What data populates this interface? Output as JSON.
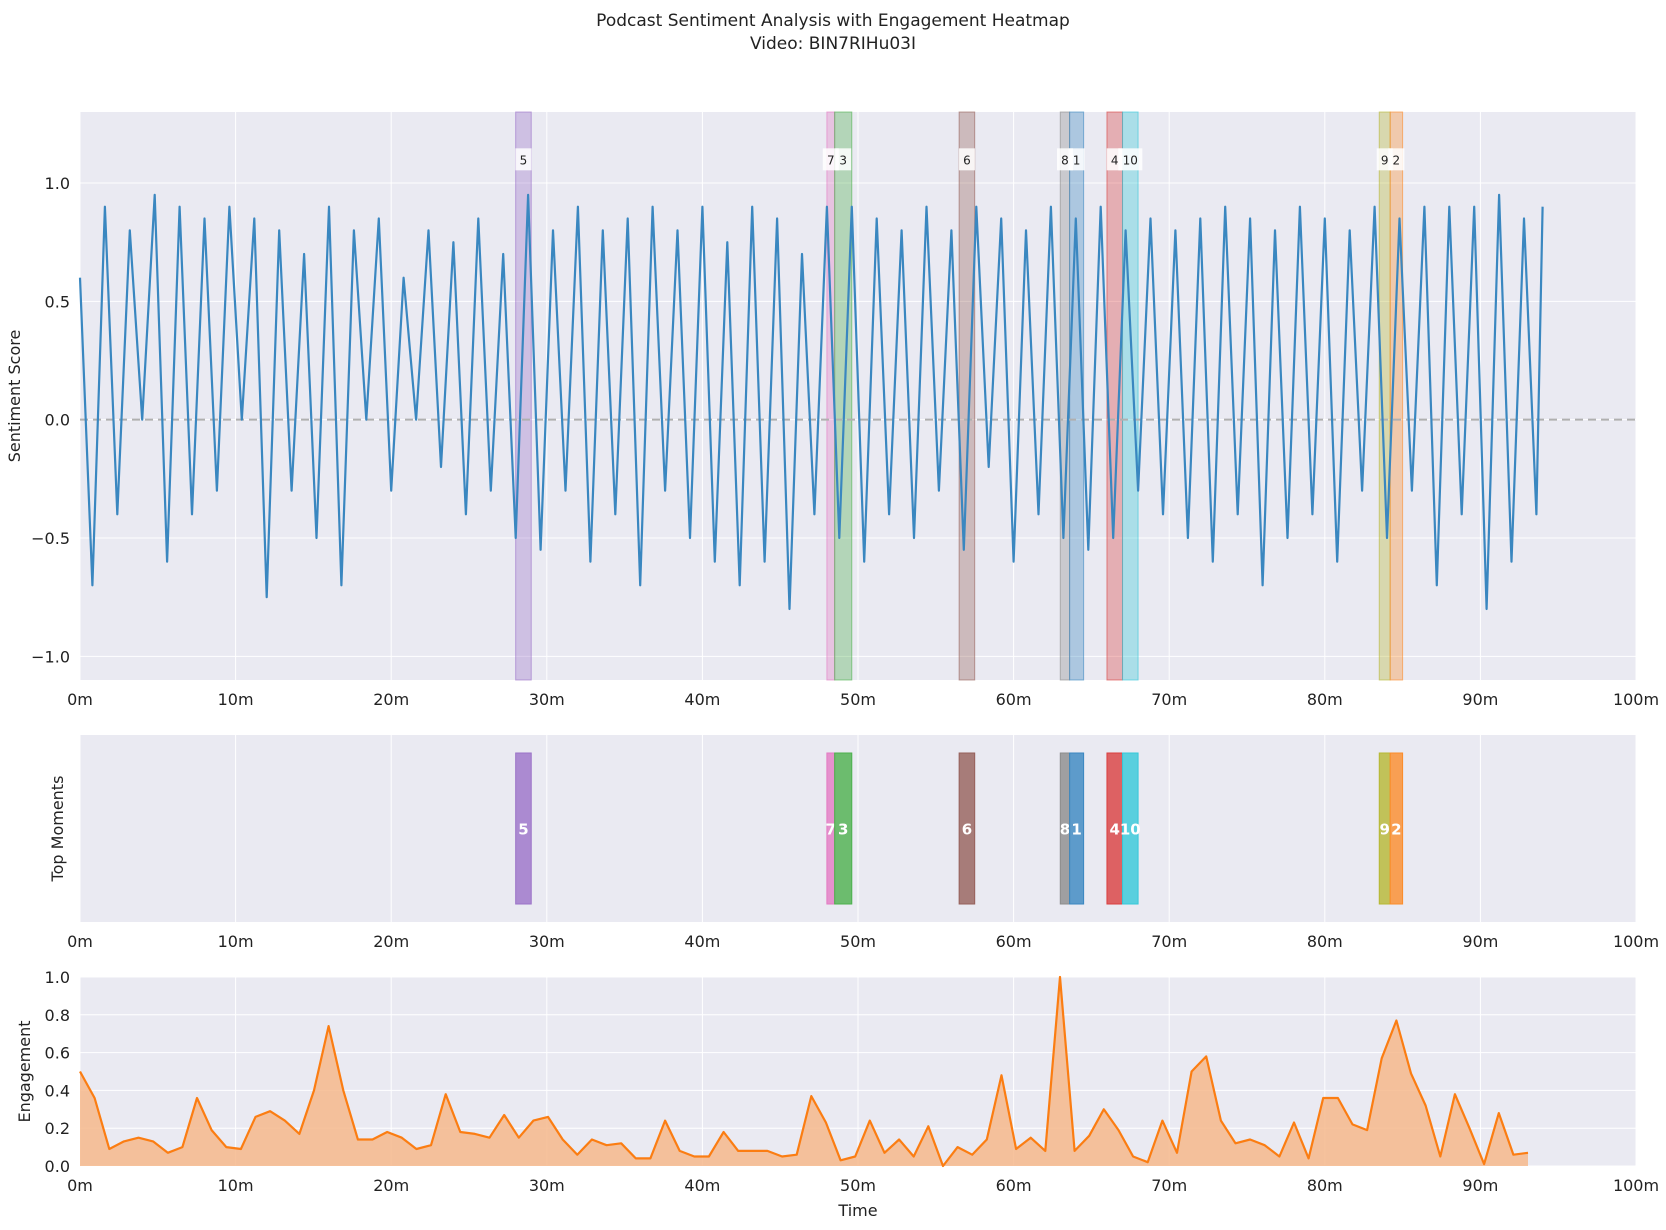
{
  "figure": {
    "title": "Podcast Sentiment Analysis with Engagement Heatmap",
    "subtitle": "Video: BIN7RIHu03I"
  },
  "chart_data": [
    {
      "type": "line",
      "panel": "sentiment",
      "ylabel": "Sentiment Score",
      "xlabel": "",
      "xlim": [
        0,
        100
      ],
      "ylim": [
        -1.1,
        1.3
      ],
      "x_ticks": [
        "0m",
        "10m",
        "20m",
        "30m",
        "40m",
        "50m",
        "60m",
        "70m",
        "80m",
        "90m",
        "100m"
      ],
      "y_ticks": [
        "−1.0",
        "−0.5",
        "0.0",
        "0.5",
        "1.0"
      ],
      "y_tick_values": [
        -1.0,
        -0.5,
        0.0,
        0.5,
        1.0
      ],
      "grid": true,
      "baseline": 0.0,
      "line_color": "#3a87c0",
      "series": [
        {
          "x_minutes": [
            0.0,
            0.8,
            1.6,
            2.4,
            3.2,
            4.0,
            4.8,
            5.6,
            6.4,
            7.2,
            8.0,
            8.8,
            9.6,
            10.4,
            11.2,
            12.0,
            12.8,
            13.6,
            14.4,
            15.2,
            16.0,
            16.8,
            17.6,
            18.4,
            19.2,
            20.0,
            20.8,
            21.6,
            22.4,
            23.2,
            24.0,
            24.8,
            25.6,
            26.4,
            27.2,
            28.0,
            28.8,
            29.6,
            30.4,
            31.2,
            32.0,
            32.8,
            33.6,
            34.4,
            35.2,
            36.0,
            36.8,
            37.6,
            38.4,
            39.2,
            40.0,
            40.8,
            41.6,
            42.4,
            43.2,
            44.0,
            44.8,
            45.6,
            46.4,
            47.2,
            48.0,
            48.8,
            49.6,
            50.4,
            51.2,
            52.0,
            52.8,
            53.6,
            54.4,
            55.2,
            56.0,
            56.8,
            57.6,
            58.4,
            59.2,
            60.0,
            60.8,
            61.6,
            62.4,
            63.2,
            64.0,
            64.8,
            65.6,
            66.4,
            67.2,
            68.0,
            68.8,
            69.6,
            70.4,
            71.2,
            72.0,
            72.8,
            73.6,
            74.4,
            75.2,
            76.0,
            76.8,
            77.6,
            78.4,
            79.2,
            80.0,
            80.8,
            81.6,
            82.4,
            83.2,
            84.0,
            84.8,
            85.6,
            86.4,
            87.2,
            88.0,
            88.8,
            89.6,
            90.4,
            91.2,
            92.0,
            92.8,
            93.6,
            94.0
          ],
          "y": [
            0.6,
            -0.7,
            0.9,
            -0.4,
            0.8,
            0.0,
            0.95,
            -0.6,
            0.9,
            -0.4,
            0.85,
            -0.3,
            0.9,
            0.0,
            0.85,
            -0.75,
            0.8,
            -0.3,
            0.7,
            -0.5,
            0.9,
            -0.7,
            0.8,
            0.0,
            0.85,
            -0.3,
            0.6,
            0.0,
            0.8,
            -0.2,
            0.75,
            -0.4,
            0.85,
            -0.3,
            0.7,
            -0.5,
            0.95,
            -0.55,
            0.8,
            -0.3,
            0.9,
            -0.6,
            0.8,
            -0.4,
            0.85,
            -0.7,
            0.9,
            -0.3,
            0.8,
            -0.5,
            0.9,
            -0.6,
            0.75,
            -0.7,
            0.9,
            -0.6,
            0.85,
            -0.8,
            0.7,
            -0.4,
            0.9,
            -0.5,
            0.9,
            -0.6,
            0.85,
            -0.4,
            0.8,
            -0.5,
            0.9,
            -0.3,
            0.8,
            -0.55,
            0.9,
            -0.2,
            0.85,
            -0.6,
            0.8,
            -0.4,
            0.9,
            -0.5,
            0.85,
            -0.55,
            0.9,
            -0.5,
            0.8,
            -0.3,
            0.85,
            -0.4,
            0.8,
            -0.5,
            0.85,
            -0.6,
            0.9,
            -0.4,
            0.85,
            -0.7,
            0.8,
            -0.5,
            0.9,
            -0.4,
            0.85,
            -0.6,
            0.8,
            -0.3,
            0.9,
            -0.5,
            0.85,
            -0.3,
            0.9,
            -0.7,
            0.9,
            -0.4,
            0.9,
            -0.8,
            0.95,
            -0.6,
            0.85,
            -0.4,
            0.9
          ]
        }
      ],
      "highlight_labels": [
        "5",
        "7",
        "3",
        "6",
        "8",
        "1",
        "4",
        "10",
        "9",
        "2"
      ]
    },
    {
      "type": "bar",
      "panel": "top-moments",
      "ylabel": "Top Moments",
      "xlim": [
        0,
        100
      ],
      "x_ticks": [
        "0m",
        "10m",
        "20m",
        "30m",
        "40m",
        "50m",
        "60m",
        "70m",
        "80m",
        "90m",
        "100m"
      ],
      "grid": true,
      "moments": [
        {
          "rank": "5",
          "start": 28.0,
          "end": 29.0,
          "color": "#9b72c8"
        },
        {
          "rank": "7",
          "start": 48.0,
          "end": 48.5,
          "color": "#e37bc3"
        },
        {
          "rank": "3",
          "start": 48.5,
          "end": 49.6,
          "color": "#4cb04c"
        },
        {
          "rank": "6",
          "start": 56.5,
          "end": 57.5,
          "color": "#96605a"
        },
        {
          "rank": "8",
          "start": 63.0,
          "end": 63.6,
          "color": "#8c8c8c"
        },
        {
          "rank": "1",
          "start": 63.6,
          "end": 64.5,
          "color": "#3a87c0"
        },
        {
          "rank": "4",
          "start": 66.0,
          "end": 67.0,
          "color": "#d93f3f"
        },
        {
          "rank": "10",
          "start": 67.0,
          "end": 68.0,
          "color": "#35c8d8"
        },
        {
          "rank": "9",
          "start": 83.5,
          "end": 84.2,
          "color": "#b6b832"
        },
        {
          "rank": "2",
          "start": 84.2,
          "end": 85.0,
          "color": "#fb8c2a"
        }
      ]
    },
    {
      "type": "area",
      "panel": "engagement",
      "ylabel": "Engagement",
      "xlabel": "Time",
      "xlim": [
        0,
        100
      ],
      "ylim": [
        0,
        1.0
      ],
      "x_ticks": [
        "0m",
        "10m",
        "20m",
        "30m",
        "40m",
        "50m",
        "60m",
        "70m",
        "80m",
        "90m",
        "100m"
      ],
      "y_ticks": [
        "0.0",
        "0.2",
        "0.4",
        "0.6",
        "0.8",
        "1.0"
      ],
      "y_tick_values": [
        0.0,
        0.2,
        0.4,
        0.6,
        0.8,
        1.0
      ],
      "grid": true,
      "line_color": "#fb7d12",
      "fill_color": "#f6b98c",
      "x": [
        0.0,
        0.94,
        1.88,
        2.82,
        3.76,
        4.7,
        5.64,
        6.58,
        7.52,
        8.46,
        9.4,
        10.34,
        11.28,
        12.22,
        13.16,
        14.1,
        15.04,
        15.98,
        16.92,
        17.86,
        18.8,
        19.74,
        20.68,
        21.62,
        22.56,
        23.5,
        24.44,
        25.38,
        26.32,
        27.26,
        28.2,
        29.14,
        30.08,
        31.02,
        31.96,
        32.9,
        33.84,
        34.78,
        35.72,
        36.66,
        37.6,
        38.54,
        39.48,
        40.42,
        41.36,
        42.3,
        43.24,
        44.18,
        45.12,
        46.06,
        47.0,
        47.94,
        48.88,
        49.82,
        50.76,
        51.7,
        52.64,
        53.58,
        54.52,
        55.46,
        56.4,
        57.34,
        58.28,
        59.22,
        60.16,
        61.1,
        62.04,
        62.98,
        63.92,
        64.86,
        65.8,
        66.74,
        67.68,
        68.62,
        69.56,
        70.5,
        71.44,
        72.38,
        73.32,
        74.26,
        75.2,
        76.14,
        77.08,
        78.02,
        78.96,
        79.9,
        80.84,
        81.78,
        82.72,
        83.66,
        84.6,
        85.54,
        86.48,
        87.42,
        88.36,
        89.3,
        90.24,
        91.18,
        92.12,
        93.06
      ],
      "values": [
        0.5,
        0.36,
        0.09,
        0.13,
        0.15,
        0.13,
        0.07,
        0.1,
        0.36,
        0.19,
        0.1,
        0.09,
        0.26,
        0.29,
        0.24,
        0.17,
        0.4,
        0.74,
        0.4,
        0.14,
        0.14,
        0.18,
        0.15,
        0.09,
        0.11,
        0.38,
        0.18,
        0.17,
        0.15,
        0.27,
        0.15,
        0.24,
        0.26,
        0.14,
        0.06,
        0.14,
        0.11,
        0.12,
        0.04,
        0.04,
        0.24,
        0.08,
        0.05,
        0.05,
        0.18,
        0.08,
        0.08,
        0.08,
        0.05,
        0.06,
        0.37,
        0.23,
        0.03,
        0.05,
        0.24,
        0.07,
        0.14,
        0.05,
        0.21,
        0.0,
        0.1,
        0.06,
        0.14,
        0.48,
        0.09,
        0.15,
        0.08,
        1.0,
        0.08,
        0.16,
        0.3,
        0.19,
        0.05,
        0.02,
        0.24,
        0.07,
        0.5,
        0.58,
        0.24,
        0.12,
        0.14,
        0.11,
        0.05,
        0.23,
        0.04,
        0.36,
        0.36,
        0.22,
        0.19,
        0.57,
        0.77,
        0.49,
        0.32,
        0.05,
        0.38,
        0.2,
        0.01,
        0.28,
        0.06,
        0.07
      ]
    }
  ]
}
